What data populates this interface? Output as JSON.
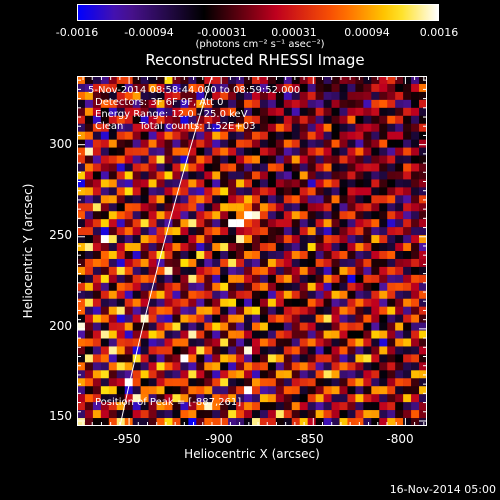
{
  "colorbar": {
    "tick_labels": [
      "-0.0016",
      "-0.00094",
      "-0.00031",
      "0.00031",
      "0.00094",
      "0.0016"
    ],
    "units": "(photons cm⁻² s⁻¹ asec⁻²)"
  },
  "title": "Reconstructed RHESSI Image",
  "annotations": {
    "time_range": "5-Nov-2014 08:58:44.000 to 08:59:52.000",
    "detectors": "Detectors: 3F 6F 9F, Att 0",
    "energy": "Energy Range: 12.0 - 25.0 keV",
    "method": "Clean     Total counts: 1.52E+03",
    "peak": "Position of Peak = [-887,261]"
  },
  "axes": {
    "xlabel": "Heliocentric X (arcsec)",
    "ylabel": "Heliocentric Y (arcsec)",
    "x_ticks": [
      "-950",
      "-900",
      "-850",
      "-800"
    ],
    "y_ticks": [
      "300",
      "250",
      "200",
      "150"
    ]
  },
  "footer": {
    "timestamp": "16-Nov-2014 05:00"
  },
  "image_info": {
    "colormap": "hot (blue-black-red-yellow-white)",
    "peak_x": -887,
    "peak_y": 261,
    "x_range": [
      -978,
      -788
    ],
    "y_range": [
      147,
      337
    ]
  }
}
